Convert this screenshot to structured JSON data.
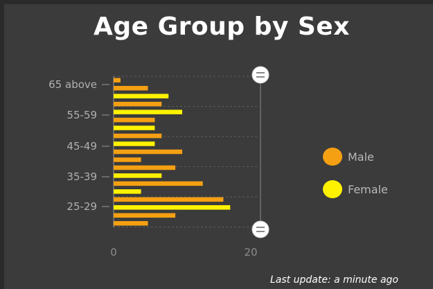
{
  "header": {
    "title": "Age Group by Sex"
  },
  "footer": {
    "last_update": "Last update: a minute ago"
  },
  "chart_data": {
    "type": "bar",
    "orientation": "horizontal",
    "title": "Age Group by Sex",
    "xlim": [
      0,
      20
    ],
    "x_ticks": [
      "0",
      "20"
    ],
    "y_tick_labels": [
      "65 above",
      "55-59",
      "45-49",
      "35-39",
      "25-29"
    ],
    "legend_placement": "right",
    "grid": true,
    "rows": [
      {
        "series": "Male",
        "value": 1
      },
      {
        "series": "Male",
        "value": 5
      },
      {
        "series": "Female",
        "value": 8
      },
      {
        "series": "Male",
        "value": 7
      },
      {
        "series": "Female",
        "value": 10
      },
      {
        "series": "Male",
        "value": 6
      },
      {
        "series": "Female",
        "value": 6
      },
      {
        "series": "Male",
        "value": 7
      },
      {
        "series": "Female",
        "value": 6
      },
      {
        "series": "Male",
        "value": 10
      },
      {
        "series": "Male",
        "value": 4
      },
      {
        "series": "Male",
        "value": 9
      },
      {
        "series": "Female",
        "value": 7
      },
      {
        "series": "Male",
        "value": 13
      },
      {
        "series": "Female",
        "value": 4
      },
      {
        "series": "Male",
        "value": 16
      },
      {
        "series": "Female",
        "value": 17
      },
      {
        "series": "Male",
        "value": 9
      },
      {
        "series": "Male",
        "value": 5
      }
    ],
    "series": [
      {
        "name": "Male",
        "color": "#f5a012"
      },
      {
        "name": "Female",
        "color": "#fff200"
      }
    ]
  }
}
